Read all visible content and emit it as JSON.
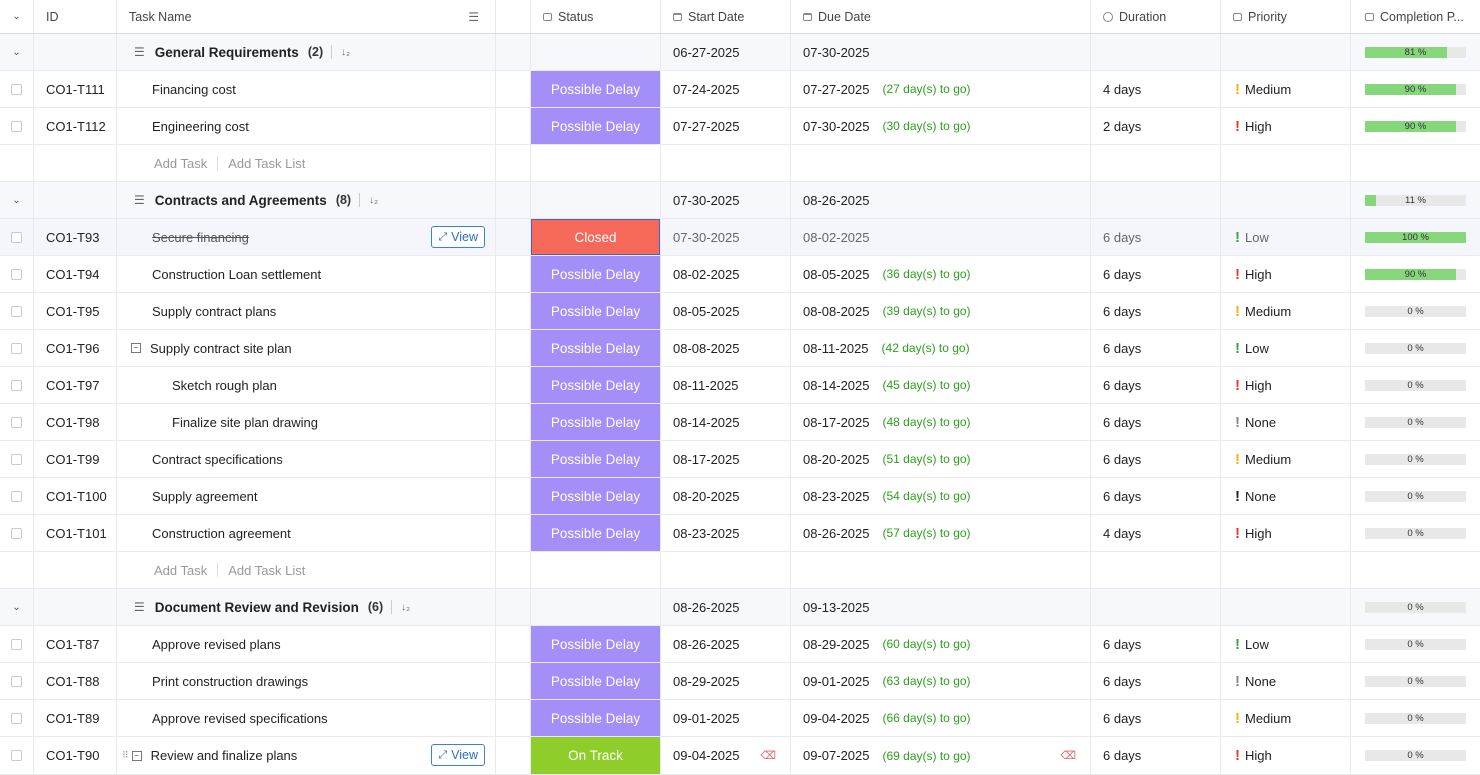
{
  "header": {
    "col_id": "ID",
    "col_task": "Task Name",
    "col_status": "Status",
    "col_start": "Start Date",
    "col_due": "Due Date",
    "col_duration": "Duration",
    "col_priority": "Priority",
    "col_completion": "Completion P..."
  },
  "add_task_label": "Add Task",
  "add_list_label": "Add Task List",
  "view_label": "View",
  "colors": {
    "possible_delay": "#a48ef8",
    "closed": "#f4695a",
    "on_track": "#8fcd2b",
    "progress_fill": "#86d67c",
    "to_go_text": "#2e9e1f",
    "priority_high": "#e53935",
    "priority_medium": "#f4b400",
    "priority_low": "#43a047",
    "priority_none": "#888888"
  },
  "rows": [
    {
      "type": "group",
      "name": "General Requirements",
      "count": "(2)",
      "start": "06-27-2025",
      "due": "07-30-2025",
      "completion": 81
    },
    {
      "type": "task",
      "id": "CO1-T111",
      "name": "Financing cost",
      "indent": 1,
      "status": "Possible Delay",
      "start": "07-24-2025",
      "due": "07-27-2025",
      "to_go": "(27 day(s) to go)",
      "duration": "4 days",
      "priority": "Medium",
      "completion": 90
    },
    {
      "type": "task",
      "id": "CO1-T112",
      "name": "Engineering cost",
      "indent": 1,
      "status": "Possible Delay",
      "start": "07-27-2025",
      "due": "07-30-2025",
      "to_go": "(30 day(s) to go)",
      "duration": "2 days",
      "priority": "High",
      "completion": 90
    },
    {
      "type": "add"
    },
    {
      "type": "group",
      "name": "Contracts and Agreements",
      "count": "(8)",
      "start": "07-30-2025",
      "due": "08-26-2025",
      "completion": 11
    },
    {
      "type": "task",
      "id": "CO1-T93",
      "name": "Secure financing",
      "indent": 1,
      "status": "Closed",
      "start": "07-30-2025",
      "due": "08-02-2025",
      "to_go": "",
      "duration": "6 days",
      "priority": "Low",
      "completion": 100,
      "done": true,
      "view": true
    },
    {
      "type": "task",
      "id": "CO1-T94",
      "name": "Construction Loan settlement",
      "indent": 1,
      "status": "Possible Delay",
      "start": "08-02-2025",
      "due": "08-05-2025",
      "to_go": "(36 day(s) to go)",
      "duration": "6 days",
      "priority": "High",
      "completion": 90
    },
    {
      "type": "task",
      "id": "CO1-T95",
      "name": "Supply contract plans",
      "indent": 1,
      "status": "Possible Delay",
      "start": "08-05-2025",
      "due": "08-08-2025",
      "to_go": "(39 day(s) to go)",
      "duration": "6 days",
      "priority": "Medium",
      "completion": 0
    },
    {
      "type": "task",
      "id": "CO1-T96",
      "name": "Supply contract site plan",
      "indent": 1,
      "status": "Possible Delay",
      "start": "08-08-2025",
      "due": "08-11-2025",
      "to_go": "(42 day(s) to go)",
      "duration": "6 days",
      "priority": "Low",
      "completion": 0,
      "expand": true
    },
    {
      "type": "task",
      "id": "CO1-T97",
      "name": "Sketch rough plan",
      "indent": 2,
      "status": "Possible Delay",
      "start": "08-11-2025",
      "due": "08-14-2025",
      "to_go": "(45 day(s) to go)",
      "duration": "6 days",
      "priority": "High",
      "completion": 0
    },
    {
      "type": "task",
      "id": "CO1-T98",
      "name": "Finalize site plan drawing",
      "indent": 2,
      "status": "Possible Delay",
      "start": "08-14-2025",
      "due": "08-17-2025",
      "to_go": "(48 day(s) to go)",
      "duration": "6 days",
      "priority": "None",
      "completion": 0
    },
    {
      "type": "task",
      "id": "CO1-T99",
      "name": "Contract specifications",
      "indent": 1,
      "status": "Possible Delay",
      "start": "08-17-2025",
      "due": "08-20-2025",
      "to_go": "(51 day(s) to go)",
      "duration": "6 days",
      "priority": "Medium",
      "completion": 0
    },
    {
      "type": "task",
      "id": "CO1-T100",
      "name": "Supply agreement",
      "indent": 1,
      "status": "Possible Delay",
      "start": "08-20-2025",
      "due": "08-23-2025",
      "to_go": "(54 day(s) to go)",
      "duration": "6 days",
      "priority": "None",
      "priority_dark": true,
      "completion": 0
    },
    {
      "type": "task",
      "id": "CO1-T101",
      "name": "Construction agreement",
      "indent": 1,
      "status": "Possible Delay",
      "start": "08-23-2025",
      "due": "08-26-2025",
      "to_go": "(57 day(s) to go)",
      "duration": "4 days",
      "priority": "High",
      "completion": 0
    },
    {
      "type": "add"
    },
    {
      "type": "group",
      "name": "Document Review and Revision",
      "count": "(6)",
      "start": "08-26-2025",
      "due": "09-13-2025",
      "completion": 0
    },
    {
      "type": "task",
      "id": "CO1-T87",
      "name": "Approve revised plans",
      "indent": 1,
      "status": "Possible Delay",
      "start": "08-26-2025",
      "due": "08-29-2025",
      "to_go": "(60 day(s) to go)",
      "duration": "6 days",
      "priority": "Low",
      "completion": 0
    },
    {
      "type": "task",
      "id": "CO1-T88",
      "name": "Print construction drawings",
      "indent": 1,
      "status": "Possible Delay",
      "start": "08-29-2025",
      "due": "09-01-2025",
      "to_go": "(63 day(s) to go)",
      "duration": "6 days",
      "priority": "None",
      "completion": 0
    },
    {
      "type": "task",
      "id": "CO1-T89",
      "name": "Approve revised specifications",
      "indent": 1,
      "status": "Possible Delay",
      "start": "09-01-2025",
      "due": "09-04-2025",
      "to_go": "(66 day(s) to go)",
      "duration": "6 days",
      "priority": "Medium",
      "completion": 0
    },
    {
      "type": "task",
      "id": "CO1-T90",
      "name": "Review and finalize plans",
      "indent": 1,
      "status": "On Track",
      "start": "09-04-2025",
      "due": "09-07-2025",
      "to_go": "(69 day(s) to go)",
      "duration": "6 days",
      "priority": "High",
      "completion": 0,
      "view": true,
      "expand": true,
      "drag": true,
      "clear_icons": true
    }
  ]
}
